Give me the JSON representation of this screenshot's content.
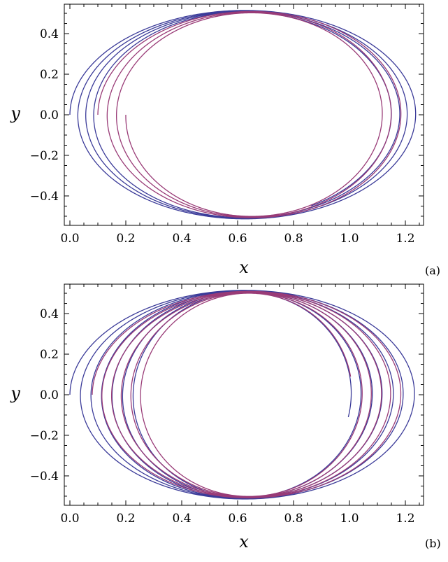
{
  "colors": {
    "blue": "#3b3b99",
    "purple": "#993b77",
    "frame": "#000000"
  },
  "chart_data": [
    {
      "type": "line",
      "panel_label": "(a)",
      "xlabel": "x",
      "ylabel": "y",
      "xlim": [
        -0.02,
        1.265
      ],
      "ylim": [
        -0.545,
        0.545
      ],
      "xticks": [
        "0.0",
        "0.2",
        "0.4",
        "0.6",
        "0.8",
        "1.0",
        "1.2"
      ],
      "yticks": [
        "−0.4",
        "−0.2",
        "0.0",
        "0.2",
        "0.4"
      ],
      "xtick_values": [
        0.0,
        0.2,
        0.4,
        0.6,
        0.8,
        1.0,
        1.2
      ],
      "ytick_values": [
        -0.4,
        -0.2,
        0.0,
        0.2,
        0.4
      ],
      "series": [
        {
          "color": "blue",
          "ellipse": {
            "cx": 0.625,
            "ry": 0.515,
            "rx_start": 0.625,
            "rx_end": 0.52,
            "turns": 3.7,
            "shift": 0.2
          }
        },
        {
          "color": "purple",
          "ellipse": {
            "cx": 0.65,
            "ry": 0.51,
            "rx_start": 0.55,
            "rx_end": 0.45,
            "turns": 3.0,
            "shift": 0.15
          }
        }
      ]
    },
    {
      "type": "line",
      "panel_label": "(b)",
      "xlabel": "x",
      "ylabel": "y",
      "xlim": [
        -0.02,
        1.265
      ],
      "ylim": [
        -0.545,
        0.545
      ],
      "xticks": [
        "0.0",
        "0.2",
        "0.4",
        "0.6",
        "0.8",
        "1.0",
        "1.2"
      ],
      "yticks": [
        "−0.4",
        "−0.2",
        "0.0",
        "0.2",
        "0.4"
      ],
      "xtick_values": [
        0.0,
        0.2,
        0.4,
        0.6,
        0.8,
        1.0,
        1.2
      ],
      "ytick_values": [
        -0.4,
        -0.2,
        0.0,
        0.2,
        0.4
      ],
      "series": [
        {
          "color": "blue",
          "ellipse": {
            "cx": 0.625,
            "ry": 0.515,
            "rx_start": 0.625,
            "rx_end": 0.38,
            "turns": 6.5,
            "shift": 0.22
          }
        },
        {
          "color": "purple",
          "ellipse": {
            "cx": 0.64,
            "ry": 0.51,
            "rx_start": 0.56,
            "rx_end": 0.37,
            "turns": 5.5,
            "shift": 0.18
          }
        }
      ]
    }
  ]
}
